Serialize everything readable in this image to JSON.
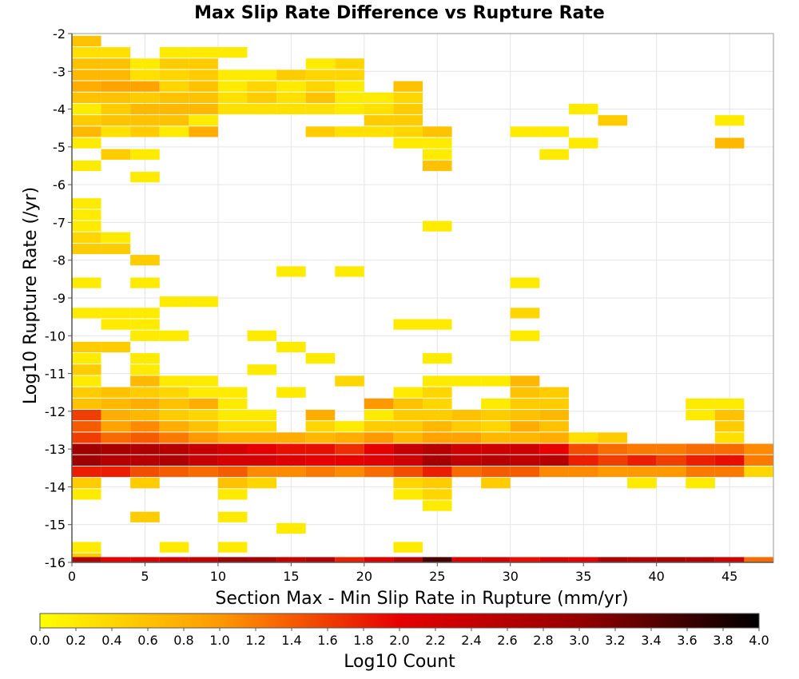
{
  "chart_data": {
    "type": "heatmap",
    "title": "Max Slip Rate Difference vs Rupture Rate",
    "xlabel": "Section Max - Min Slip Rate in Rupture (mm/yr)",
    "ylabel": "Log10 Rupture Rate (/yr)",
    "xlim": [
      0,
      48
    ],
    "ylim": [
      -16,
      -2
    ],
    "bin_width_x": 2,
    "bin_height_y": 0.28,
    "x_ticks": [
      "0",
      "5",
      "10",
      "15",
      "20",
      "25",
      "30",
      "35",
      "40",
      "45"
    ],
    "y_ticks": [
      "-2",
      "-3",
      "-4",
      "-5",
      "-6",
      "-7",
      "-8",
      "-9",
      "-10",
      "-11",
      "-12",
      "-13",
      "-14",
      "-15",
      "-16"
    ],
    "grid": true,
    "colorbar": {
      "label": "Log10 Count",
      "range": [
        0,
        4
      ],
      "ticks": [
        "0.0",
        "0.2",
        "0.4",
        "0.6",
        "0.8",
        "1.0",
        "1.2",
        "1.4",
        "1.6",
        "1.8",
        "2.0",
        "2.2",
        "2.4",
        "2.6",
        "2.8",
        "3.0",
        "3.2",
        "3.4",
        "3.6",
        "3.8",
        "4.0"
      ],
      "colors": [
        "#ffff00",
        "#ff9900",
        "#e60000",
        "#960000",
        "#000000"
      ]
    },
    "cells": [
      [
        1,
        -2.2,
        0.6
      ],
      [
        1,
        -2.5,
        0.3
      ],
      [
        3,
        -2.5,
        0.3
      ],
      [
        7,
        -2.5,
        0.2
      ],
      [
        9,
        -2.5,
        0.2
      ],
      [
        11,
        -2.5,
        0.2
      ],
      [
        1,
        -2.8,
        0.6
      ],
      [
        3,
        -2.8,
        0.6
      ],
      [
        5,
        -2.8,
        0.2
      ],
      [
        7,
        -2.8,
        0.5
      ],
      [
        9,
        -2.8,
        0.5
      ],
      [
        17,
        -2.8,
        0.2
      ],
      [
        19,
        -2.8,
        0.4
      ],
      [
        1,
        -3.1,
        0.7
      ],
      [
        3,
        -3.1,
        0.7
      ],
      [
        5,
        -3.1,
        0.3
      ],
      [
        7,
        -3.1,
        0.4
      ],
      [
        9,
        -3.1,
        0.5
      ],
      [
        11,
        -3.1,
        0.2
      ],
      [
        13,
        -3.1,
        0.2
      ],
      [
        15,
        -3.1,
        0.5
      ],
      [
        17,
        -3.1,
        0.4
      ],
      [
        19,
        -3.1,
        0.4
      ],
      [
        1,
        -3.4,
        0.8
      ],
      [
        3,
        -3.4,
        0.9
      ],
      [
        5,
        -3.4,
        0.9
      ],
      [
        7,
        -3.4,
        0.4
      ],
      [
        9,
        -3.4,
        0.6
      ],
      [
        11,
        -3.4,
        0.2
      ],
      [
        13,
        -3.4,
        0.4
      ],
      [
        15,
        -3.4,
        0.2
      ],
      [
        17,
        -3.4,
        0.4
      ],
      [
        19,
        -3.4,
        0.2
      ],
      [
        23,
        -3.4,
        0.6
      ],
      [
        1,
        -3.7,
        0.6
      ],
      [
        3,
        -3.7,
        0.6
      ],
      [
        5,
        -3.7,
        0.5
      ],
      [
        7,
        -3.7,
        0.6
      ],
      [
        9,
        -3.7,
        0.6
      ],
      [
        11,
        -3.7,
        0.3
      ],
      [
        13,
        -3.7,
        0.5
      ],
      [
        15,
        -3.7,
        0.3
      ],
      [
        17,
        -3.7,
        0.6
      ],
      [
        19,
        -3.7,
        0.2
      ],
      [
        21,
        -3.7,
        0.2
      ],
      [
        23,
        -3.7,
        0.4
      ],
      [
        1,
        -4.0,
        0.2
      ],
      [
        3,
        -4.0,
        0.5
      ],
      [
        5,
        -4.0,
        0.7
      ],
      [
        7,
        -4.0,
        0.7
      ],
      [
        9,
        -4.0,
        0.7
      ],
      [
        11,
        -4.0,
        0.3
      ],
      [
        13,
        -4.0,
        0.3
      ],
      [
        15,
        -4.0,
        0.3
      ],
      [
        17,
        -4.0,
        0.3
      ],
      [
        19,
        -4.0,
        0.2
      ],
      [
        21,
        -4.0,
        0.3
      ],
      [
        23,
        -4.0,
        0.5
      ],
      [
        35,
        -4.0,
        0.2
      ],
      [
        1,
        -4.3,
        0.5
      ],
      [
        3,
        -4.3,
        0.6
      ],
      [
        5,
        -4.3,
        0.6
      ],
      [
        7,
        -4.3,
        0.6
      ],
      [
        9,
        -4.3,
        0.2
      ],
      [
        21,
        -4.3,
        0.5
      ],
      [
        23,
        -4.3,
        0.5
      ],
      [
        37,
        -4.3,
        0.5
      ],
      [
        45,
        -4.3,
        0.2
      ],
      [
        1,
        -4.6,
        0.7
      ],
      [
        3,
        -4.6,
        0.3
      ],
      [
        5,
        -4.6,
        0.5
      ],
      [
        7,
        -4.6,
        0.2
      ],
      [
        9,
        -4.6,
        0.8
      ],
      [
        17,
        -4.6,
        0.5
      ],
      [
        19,
        -4.6,
        0.3
      ],
      [
        21,
        -4.6,
        0.3
      ],
      [
        23,
        -4.6,
        0.4
      ],
      [
        25,
        -4.6,
        0.6
      ],
      [
        31,
        -4.6,
        0.2
      ],
      [
        33,
        -4.6,
        0.2
      ],
      [
        1,
        -4.9,
        0.2
      ],
      [
        23,
        -4.9,
        0.2
      ],
      [
        25,
        -4.9,
        0.2
      ],
      [
        35,
        -4.9,
        0.2
      ],
      [
        45,
        -4.9,
        0.7
      ],
      [
        3,
        -5.2,
        0.5
      ],
      [
        5,
        -5.2,
        0.2
      ],
      [
        25,
        -5.2,
        0.2
      ],
      [
        33,
        -5.2,
        0.2
      ],
      [
        1,
        -5.5,
        0.2
      ],
      [
        25,
        -5.5,
        0.6
      ],
      [
        5,
        -5.8,
        0.2
      ],
      [
        1,
        -6.5,
        0.2
      ],
      [
        1,
        -6.8,
        0.2
      ],
      [
        1,
        -7.1,
        0.2
      ],
      [
        25,
        -7.1,
        0.2
      ],
      [
        1,
        -7.4,
        0.4
      ],
      [
        3,
        -7.4,
        0.2
      ],
      [
        1,
        -7.7,
        0.5
      ],
      [
        3,
        -7.7,
        0.5
      ],
      [
        5,
        -8.0,
        0.5
      ],
      [
        15,
        -8.3,
        0.2
      ],
      [
        19,
        -8.3,
        0.2
      ],
      [
        1,
        -8.6,
        0.2
      ],
      [
        5,
        -8.6,
        0.2
      ],
      [
        31,
        -8.6,
        0.2
      ],
      [
        7,
        -9.1,
        0.2
      ],
      [
        9,
        -9.1,
        0.2
      ],
      [
        1,
        -9.4,
        0.2
      ],
      [
        3,
        -9.4,
        0.2
      ],
      [
        5,
        -9.4,
        0.2
      ],
      [
        31,
        -9.4,
        0.4
      ],
      [
        3,
        -9.7,
        0.2
      ],
      [
        5,
        -9.7,
        0.2
      ],
      [
        23,
        -9.7,
        0.2
      ],
      [
        25,
        -9.7,
        0.2
      ],
      [
        5,
        -10.0,
        0.2
      ],
      [
        7,
        -10.0,
        0.2
      ],
      [
        13,
        -10.0,
        0.2
      ],
      [
        31,
        -10.0,
        0.2
      ],
      [
        1,
        -10.3,
        0.5
      ],
      [
        3,
        -10.3,
        0.5
      ],
      [
        15,
        -10.3,
        0.2
      ],
      [
        1,
        -10.6,
        0.2
      ],
      [
        5,
        -10.6,
        0.2
      ],
      [
        17,
        -10.6,
        0.2
      ],
      [
        25,
        -10.6,
        0.2
      ],
      [
        1,
        -10.9,
        0.5
      ],
      [
        5,
        -10.9,
        0.2
      ],
      [
        13,
        -10.9,
        0.2
      ],
      [
        1,
        -11.2,
        0.2
      ],
      [
        5,
        -11.2,
        0.7
      ],
      [
        7,
        -11.2,
        0.2
      ],
      [
        9,
        -11.2,
        0.2
      ],
      [
        19,
        -11.2,
        0.4
      ],
      [
        25,
        -11.2,
        0.2
      ],
      [
        27,
        -11.2,
        0.2
      ],
      [
        29,
        -11.2,
        0.2
      ],
      [
        31,
        -11.2,
        0.7
      ],
      [
        1,
        -11.5,
        0.5
      ],
      [
        3,
        -11.5,
        0.6
      ],
      [
        5,
        -11.5,
        0.5
      ],
      [
        7,
        -11.5,
        0.4
      ],
      [
        9,
        -11.5,
        0.2
      ],
      [
        11,
        -11.5,
        0.2
      ],
      [
        15,
        -11.5,
        0.2
      ],
      [
        23,
        -11.5,
        0.2
      ],
      [
        25,
        -11.5,
        0.4
      ],
      [
        31,
        -11.5,
        0.6
      ],
      [
        33,
        -11.5,
        0.5
      ],
      [
        1,
        -11.8,
        0.6
      ],
      [
        3,
        -11.8,
        0.7
      ],
      [
        5,
        -11.8,
        0.8
      ],
      [
        7,
        -11.8,
        0.6
      ],
      [
        9,
        -11.8,
        0.8
      ],
      [
        11,
        -11.8,
        0.2
      ],
      [
        21,
        -11.8,
        1.0
      ],
      [
        23,
        -11.8,
        0.6
      ],
      [
        25,
        -11.8,
        0.4
      ],
      [
        29,
        -11.8,
        0.2
      ],
      [
        31,
        -11.8,
        0.5
      ],
      [
        33,
        -11.8,
        0.5
      ],
      [
        43,
        -11.8,
        0.2
      ],
      [
        45,
        -11.8,
        0.2
      ],
      [
        1,
        -12.1,
        1.6
      ],
      [
        3,
        -12.1,
        0.8
      ],
      [
        5,
        -12.1,
        0.7
      ],
      [
        7,
        -12.1,
        0.5
      ],
      [
        9,
        -12.1,
        0.4
      ],
      [
        11,
        -12.1,
        0.2
      ],
      [
        13,
        -12.1,
        0.2
      ],
      [
        17,
        -12.1,
        0.8
      ],
      [
        21,
        -12.1,
        0.2
      ],
      [
        23,
        -12.1,
        0.5
      ],
      [
        25,
        -12.1,
        0.5
      ],
      [
        27,
        -12.1,
        0.6
      ],
      [
        29,
        -12.1,
        0.5
      ],
      [
        31,
        -12.1,
        0.6
      ],
      [
        33,
        -12.1,
        0.7
      ],
      [
        43,
        -12.1,
        0.2
      ],
      [
        45,
        -12.1,
        0.6
      ],
      [
        1,
        -12.4,
        1.4
      ],
      [
        3,
        -12.4,
        0.9
      ],
      [
        5,
        -12.4,
        1.1
      ],
      [
        7,
        -12.4,
        0.8
      ],
      [
        9,
        -12.4,
        0.6
      ],
      [
        11,
        -12.4,
        0.3
      ],
      [
        13,
        -12.4,
        0.3
      ],
      [
        17,
        -12.4,
        0.4
      ],
      [
        19,
        -12.4,
        0.2
      ],
      [
        21,
        -12.4,
        0.5
      ],
      [
        23,
        -12.4,
        0.5
      ],
      [
        25,
        -12.4,
        0.7
      ],
      [
        27,
        -12.4,
        0.5
      ],
      [
        29,
        -12.4,
        0.4
      ],
      [
        31,
        -12.4,
        0.8
      ],
      [
        33,
        -12.4,
        0.6
      ],
      [
        45,
        -12.4,
        0.5
      ],
      [
        1,
        -12.7,
        1.6
      ],
      [
        3,
        -12.7,
        1.3
      ],
      [
        5,
        -12.7,
        1.4
      ],
      [
        7,
        -12.7,
        1.2
      ],
      [
        9,
        -12.7,
        1.0
      ],
      [
        11,
        -12.7,
        0.8
      ],
      [
        13,
        -12.7,
        0.8
      ],
      [
        15,
        -12.7,
        0.8
      ],
      [
        17,
        -12.7,
        0.7
      ],
      [
        19,
        -12.7,
        0.8
      ],
      [
        21,
        -12.7,
        1.0
      ],
      [
        23,
        -12.7,
        0.7
      ],
      [
        25,
        -12.7,
        0.9
      ],
      [
        27,
        -12.7,
        0.9
      ],
      [
        29,
        -12.7,
        0.7
      ],
      [
        31,
        -12.7,
        0.7
      ],
      [
        33,
        -12.7,
        0.8
      ],
      [
        35,
        -12.7,
        0.3
      ],
      [
        37,
        -12.7,
        0.5
      ],
      [
        45,
        -12.7,
        0.3
      ],
      [
        1,
        -13.0,
        2.9
      ],
      [
        3,
        -13.0,
        2.8
      ],
      [
        5,
        -13.0,
        2.7
      ],
      [
        7,
        -13.0,
        2.6
      ],
      [
        9,
        -13.0,
        2.4
      ],
      [
        11,
        -13.0,
        2.2
      ],
      [
        13,
        -13.0,
        2.0
      ],
      [
        15,
        -13.0,
        1.9
      ],
      [
        17,
        -13.0,
        1.9
      ],
      [
        19,
        -13.0,
        1.7
      ],
      [
        21,
        -13.0,
        2.0
      ],
      [
        23,
        -13.0,
        2.4
      ],
      [
        25,
        -13.0,
        2.6
      ],
      [
        27,
        -13.0,
        2.3
      ],
      [
        29,
        -13.0,
        2.3
      ],
      [
        31,
        -13.0,
        2.3
      ],
      [
        33,
        -13.0,
        2.0
      ],
      [
        35,
        -13.0,
        1.5
      ],
      [
        37,
        -13.0,
        1.3
      ],
      [
        39,
        -13.0,
        1.2
      ],
      [
        41,
        -13.0,
        1.2
      ],
      [
        43,
        -13.0,
        1.3
      ],
      [
        45,
        -13.0,
        1.3
      ],
      [
        47,
        -13.0,
        1.1
      ],
      [
        1,
        -13.3,
        2.9
      ],
      [
        3,
        -13.3,
        2.6
      ],
      [
        5,
        -13.3,
        2.6
      ],
      [
        7,
        -13.3,
        2.7
      ],
      [
        9,
        -13.3,
        2.4
      ],
      [
        11,
        -13.3,
        2.2
      ],
      [
        13,
        -13.3,
        2.2
      ],
      [
        15,
        -13.3,
        2.1
      ],
      [
        17,
        -13.3,
        2.0
      ],
      [
        19,
        -13.3,
        2.0
      ],
      [
        21,
        -13.3,
        2.1
      ],
      [
        23,
        -13.3,
        2.3
      ],
      [
        25,
        -13.3,
        2.8
      ],
      [
        27,
        -13.3,
        2.5
      ],
      [
        29,
        -13.3,
        2.6
      ],
      [
        31,
        -13.3,
        2.5
      ],
      [
        33,
        -13.3,
        2.6
      ],
      [
        35,
        -13.3,
        1.8
      ],
      [
        37,
        -13.3,
        1.6
      ],
      [
        39,
        -13.3,
        1.8
      ],
      [
        41,
        -13.3,
        1.6
      ],
      [
        43,
        -13.3,
        1.8
      ],
      [
        45,
        -13.3,
        1.9
      ],
      [
        47,
        -13.3,
        1.2
      ],
      [
        1,
        -13.6,
        1.8
      ],
      [
        3,
        -13.6,
        1.8
      ],
      [
        5,
        -13.6,
        1.5
      ],
      [
        7,
        -13.6,
        1.4
      ],
      [
        9,
        -13.6,
        1.3
      ],
      [
        11,
        -13.6,
        1.4
      ],
      [
        13,
        -13.6,
        1.1
      ],
      [
        15,
        -13.6,
        1.1
      ],
      [
        17,
        -13.6,
        1.2
      ],
      [
        19,
        -13.6,
        1.1
      ],
      [
        21,
        -13.6,
        1.3
      ],
      [
        23,
        -13.6,
        1.5
      ],
      [
        25,
        -13.6,
        1.8
      ],
      [
        27,
        -13.6,
        1.3
      ],
      [
        29,
        -13.6,
        1.4
      ],
      [
        31,
        -13.6,
        1.4
      ],
      [
        33,
        -13.6,
        1.1
      ],
      [
        35,
        -13.6,
        1.1
      ],
      [
        37,
        -13.6,
        1.0
      ],
      [
        39,
        -13.6,
        1.0
      ],
      [
        41,
        -13.6,
        1.0
      ],
      [
        43,
        -13.6,
        1.2
      ],
      [
        45,
        -13.6,
        1.2
      ],
      [
        47,
        -13.6,
        0.4
      ],
      [
        1,
        -13.9,
        0.5
      ],
      [
        5,
        -13.9,
        0.5
      ],
      [
        11,
        -13.9,
        0.6
      ],
      [
        13,
        -13.9,
        0.4
      ],
      [
        23,
        -13.9,
        0.4
      ],
      [
        25,
        -13.9,
        0.5
      ],
      [
        29,
        -13.9,
        0.5
      ],
      [
        39,
        -13.9,
        0.2
      ],
      [
        43,
        -13.9,
        0.2
      ],
      [
        1,
        -14.2,
        0.2
      ],
      [
        11,
        -14.2,
        0.2
      ],
      [
        23,
        -14.2,
        0.2
      ],
      [
        25,
        -14.2,
        0.4
      ],
      [
        25,
        -14.5,
        0.2
      ],
      [
        5,
        -14.8,
        0.5
      ],
      [
        11,
        -14.8,
        0.2
      ],
      [
        15,
        -15.1,
        0.2
      ],
      [
        1,
        -15.6,
        0.2
      ],
      [
        7,
        -15.6,
        0.2
      ],
      [
        11,
        -15.6,
        0.2
      ],
      [
        23,
        -15.6,
        0.2
      ],
      [
        1,
        -15.9,
        0.5
      ],
      [
        1,
        -16.0,
        2.6
      ],
      [
        3,
        -16.0,
        2.0
      ],
      [
        5,
        -16.0,
        2.1
      ],
      [
        7,
        -16.0,
        2.3
      ],
      [
        9,
        -16.0,
        2.4
      ],
      [
        11,
        -16.0,
        2.9
      ],
      [
        13,
        -16.0,
        2.8
      ],
      [
        15,
        -16.0,
        2.4
      ],
      [
        17,
        -16.0,
        2.6
      ],
      [
        19,
        -16.0,
        1.8
      ],
      [
        21,
        -16.0,
        2.1
      ],
      [
        23,
        -16.0,
        2.6
      ],
      [
        25,
        -16.0,
        3.5
      ],
      [
        27,
        -16.0,
        2.1
      ],
      [
        29,
        -16.0,
        2.2
      ],
      [
        31,
        -16.0,
        1.9
      ],
      [
        33,
        -16.0,
        2.1
      ],
      [
        35,
        -16.0,
        2.0
      ],
      [
        37,
        -16.0,
        2.7
      ],
      [
        39,
        -16.0,
        2.6
      ],
      [
        41,
        -16.0,
        2.7
      ],
      [
        43,
        -16.0,
        2.6
      ],
      [
        45,
        -16.0,
        2.3
      ],
      [
        47,
        -16.0,
        1.3
      ]
    ]
  }
}
